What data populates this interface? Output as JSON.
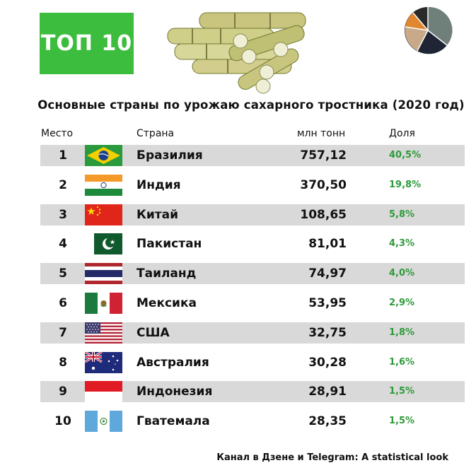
{
  "badge": "ТОП 10",
  "title": "Основные страны по урожаю сахарного тростника (2020 год)",
  "footer": "Канал в Дзене и Telegram: A statistical look",
  "chart_data": {
    "type": "table",
    "columns": [
      "Место",
      "Страна",
      "млн тонн",
      "Доля"
    ],
    "rows": [
      {
        "rank": "1",
        "country": "Бразилия",
        "value": "757,12",
        "share": "40,5%",
        "flag": "brazil"
      },
      {
        "rank": "2",
        "country": "Индия",
        "value": "370,50",
        "share": "19,8%",
        "flag": "india"
      },
      {
        "rank": "3",
        "country": "Китай",
        "value": "108,65",
        "share": "5,8%",
        "flag": "china"
      },
      {
        "rank": "4",
        "country": "Пакистан",
        "value": "81,01",
        "share": "4,3%",
        "flag": "pakistan"
      },
      {
        "rank": "5",
        "country": "Таиланд",
        "value": "74,97",
        "share": "4,0%",
        "flag": "thailand"
      },
      {
        "rank": "6",
        "country": "Мексика",
        "value": "53,95",
        "share": "2,9%",
        "flag": "mexico"
      },
      {
        "rank": "7",
        "country": "США",
        "value": "32,75",
        "share": "1,8%",
        "flag": "usa"
      },
      {
        "rank": "8",
        "country": "Австралия",
        "value": "30,28",
        "share": "1,6%",
        "flag": "australia"
      },
      {
        "rank": "9",
        "country": "Индонезия",
        "value": "28,91",
        "share": "1,5%",
        "flag": "indonesia"
      },
      {
        "rank": "10",
        "country": "Гватемала",
        "value": "28,35",
        "share": "1,5%",
        "flag": "guatemala"
      }
    ]
  },
  "colors": {
    "badge": "#3dbd3d",
    "share_text": "#2e9a3a",
    "row_shade": "#d9d9d9"
  }
}
